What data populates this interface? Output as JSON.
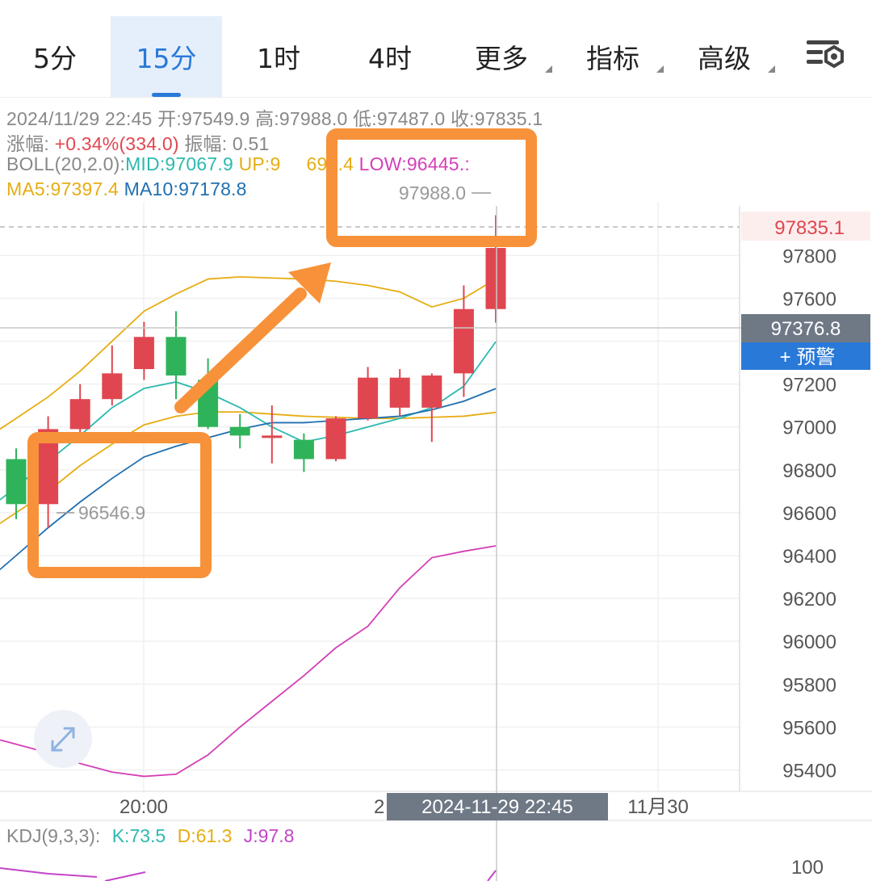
{
  "tabs": [
    {
      "label": "5分",
      "active": false,
      "dropdown": false
    },
    {
      "label": "15分",
      "active": true,
      "dropdown": false
    },
    {
      "label": "1时",
      "active": false,
      "dropdown": false
    },
    {
      "label": "4时",
      "active": false,
      "dropdown": false
    },
    {
      "label": "更多",
      "active": false,
      "dropdown": true
    },
    {
      "label": "指标",
      "active": false,
      "dropdown": true
    },
    {
      "label": "高级",
      "active": false,
      "dropdown": true
    }
  ],
  "settings_icon": "chart-settings-icon",
  "ohlc": {
    "datetime": "2024/11/29 22:45",
    "open_label": "开:",
    "open": "97549.9",
    "high_label": "高:",
    "high": "97988.0",
    "low_label": "低:",
    "low": "97487.0",
    "close_label": "收:",
    "close": "97835.1"
  },
  "change": {
    "label": "涨幅:",
    "value": "+0.34%(334.0)",
    "amp_label": "振幅:",
    "amp_value": "0.51"
  },
  "boll": {
    "label": "BOLL(20,2.0):",
    "mid": "MID:97067.9",
    "up": "UP:9",
    "up_tail": "690.4",
    "low": "LOW:96445.:"
  },
  "ma": {
    "ma5": "MA5:97397.4",
    "ma10": "MA10:97178.8"
  },
  "annotations": {
    "high_marker": "97988.0",
    "low_marker": "96546.9",
    "price_tag": "97835.1",
    "crosshair_price": "97376.8",
    "alert_button": "+ 预警",
    "crosshair_time": "2024-11-29 22:45",
    "axis_partial": "2"
  },
  "kdj": {
    "label": "KDJ(9,3,3):",
    "k": "K:73.5",
    "d": "D:61.3",
    "j": "J:97.8",
    "axis_tick": "100"
  },
  "colors": {
    "up": "#e0464f",
    "down": "#2fb35a",
    "accent": "#2979d8",
    "highlight": "#f7923a"
  },
  "chart_data": {
    "type": "candlestick",
    "ylim": [
      95300,
      98050
    ],
    "y_ticks": [
      95400,
      95600,
      95800,
      96000,
      96200,
      96400,
      96600,
      96800,
      97000,
      97200,
      97400,
      97600,
      97800
    ],
    "x_ticks": [
      "20:00",
      "11月30"
    ],
    "candles": [
      {
        "open": 96850,
        "high": 96900,
        "low": 96570,
        "close": 96640
      },
      {
        "open": 96640,
        "high": 97050,
        "low": 96530,
        "close": 96990
      },
      {
        "open": 96990,
        "high": 97200,
        "low": 96960,
        "close": 97130
      },
      {
        "open": 97130,
        "high": 97380,
        "low": 97100,
        "close": 97250
      },
      {
        "open": 97270,
        "high": 97490,
        "low": 97220,
        "close": 97420
      },
      {
        "open": 97420,
        "high": 97540,
        "low": 97130,
        "close": 97240
      },
      {
        "open": 97220,
        "high": 97320,
        "low": 96990,
        "close": 97000
      },
      {
        "open": 97000,
        "high": 97060,
        "low": 96900,
        "close": 96960
      },
      {
        "open": 96960,
        "high": 97100,
        "low": 96830,
        "close": 96960
      },
      {
        "open": 96940,
        "high": 96970,
        "low": 96790,
        "close": 96850
      },
      {
        "open": 96850,
        "high": 97050,
        "low": 96840,
        "close": 97040
      },
      {
        "open": 97040,
        "high": 97280,
        "low": 97030,
        "close": 97230
      },
      {
        "open": 97090,
        "high": 97270,
        "low": 97050,
        "close": 97230
      },
      {
        "open": 97090,
        "high": 97250,
        "low": 96930,
        "close": 97240
      },
      {
        "open": 97250,
        "high": 97660,
        "low": 97140,
        "close": 97550
      },
      {
        "open": 97550,
        "high": 97988,
        "low": 97487,
        "close": 97835.1
      }
    ],
    "series": [
      {
        "name": "BOLL UP",
        "values": [
          97040,
          97140,
          97260,
          97400,
          97540,
          97620,
          97690,
          97700,
          97695,
          97690,
          97680,
          97660,
          97630,
          97560,
          97600,
          97690.4
        ]
      },
      {
        "name": "BOLL MID",
        "values": [
          96600,
          96700,
          96820,
          96920,
          97010,
          97050,
          97070,
          97070,
          97060,
          97050,
          97045,
          97040,
          97040,
          97045,
          97050,
          97067.9
        ]
      },
      {
        "name": "BOLL LOW",
        "values": [
          95520,
          95480,
          95430,
          95390,
          95370,
          95380,
          95470,
          95600,
          95720,
          95840,
          95970,
          96070,
          96250,
          96390,
          96420,
          96445.3
        ]
      },
      {
        "name": "MA5",
        "values": [
          96720,
          96840,
          96960,
          97090,
          97180,
          97210,
          97160,
          97090,
          97000,
          96930,
          96960,
          97000,
          97040,
          97090,
          97190,
          97397.4
        ]
      },
      {
        "name": "MA10",
        "values": [
          96400,
          96530,
          96650,
          96760,
          96860,
          96910,
          96950,
          96990,
          97020,
          97020,
          97030,
          97040,
          97050,
          97080,
          97120,
          97178.8
        ]
      }
    ]
  }
}
